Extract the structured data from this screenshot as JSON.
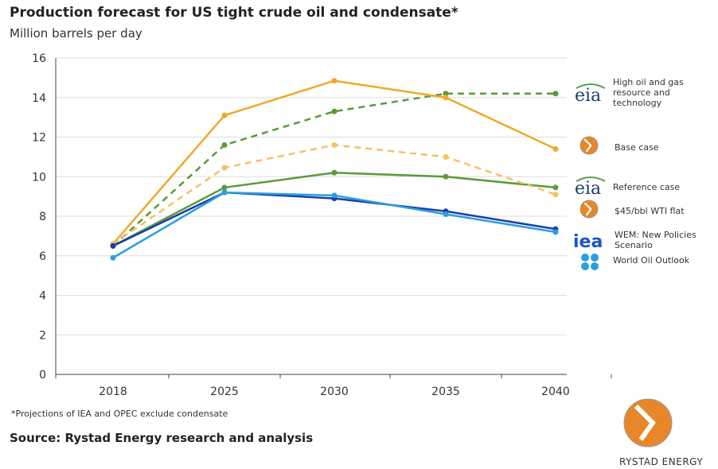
{
  "chart_data": {
    "type": "line",
    "title": "Production forecast for US tight crude oil and condensate*",
    "ylabel": "Million barrels per day",
    "categories": [
      "2018",
      "2025",
      "2030",
      "2035",
      "2040"
    ],
    "ylim": [
      0,
      16
    ],
    "yticks": [
      0,
      2,
      4,
      6,
      8,
      10,
      12,
      14,
      16
    ],
    "grid": true,
    "legend_position": "right",
    "series": [
      {
        "name": "High oil and gas resource and technology",
        "source_logo": "eia",
        "color": "#5a9a3a",
        "dashed": true,
        "values": [
          6.5,
          11.6,
          13.3,
          14.2,
          14.2
        ]
      },
      {
        "name": "Base case",
        "source_logo": "Rystad Energy",
        "color": "#f0a929",
        "dashed": false,
        "values": [
          6.6,
          13.1,
          14.85,
          14.0,
          11.4
        ]
      },
      {
        "name": "Reference case",
        "source_logo": "eia",
        "color": "#5a9a3a",
        "dashed": false,
        "values": [
          6.5,
          9.45,
          10.2,
          10.0,
          9.45
        ]
      },
      {
        "name": "$45/bbl WTI flat",
        "source_logo": "Rystad Energy",
        "color": "#f5c060",
        "dashed": true,
        "values": [
          6.6,
          10.45,
          11.6,
          11.0,
          9.1
        ]
      },
      {
        "name": "WEM: New Policies Scenario",
        "source_logo": "iea",
        "color": "#1a3fa8",
        "dashed": false,
        "values": [
          6.5,
          9.2,
          8.9,
          8.25,
          7.35
        ]
      },
      {
        "name": "World Oil Outlook",
        "source_logo": "OPEC",
        "color": "#2a9ee0",
        "dashed": false,
        "values": [
          5.9,
          9.2,
          9.05,
          8.1,
          7.2
        ]
      }
    ]
  },
  "footnote": "*Projections of IEA and OPEC exclude condensate",
  "source": "Source: Rystad Energy research and analysis",
  "brand": "RYSTAD ENERGY",
  "legend_logos": {
    "eia": "eia",
    "iea": "iea",
    "rystad_small": "RYSTAD ENERGY"
  }
}
